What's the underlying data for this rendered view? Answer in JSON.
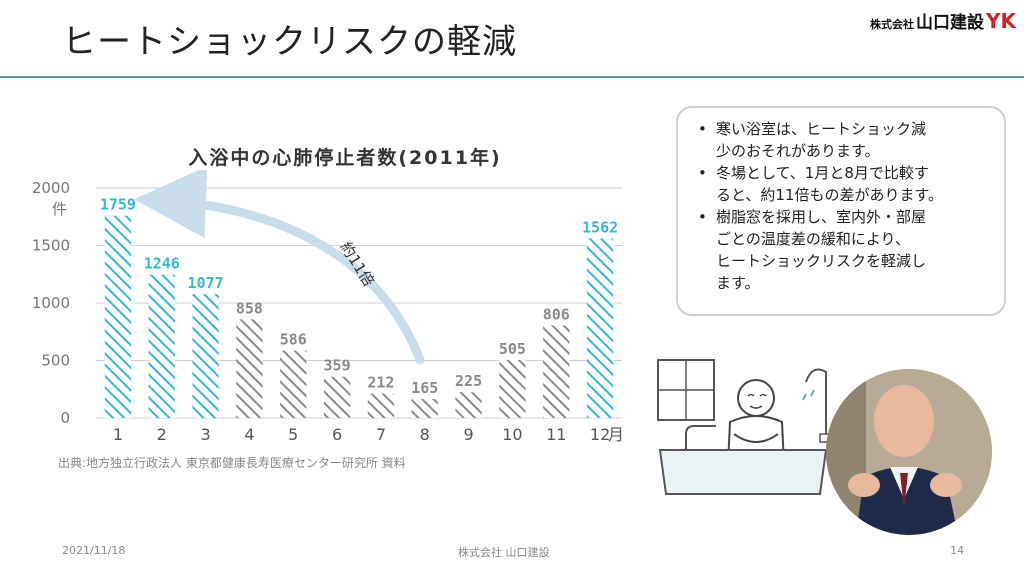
{
  "slide": {
    "title": "ヒートショックリスクの軽減",
    "logo_small": "株式会社",
    "logo_company": "山口建設",
    "logo_mark": "YK"
  },
  "chart_data": {
    "type": "bar",
    "title": "入浴中の心肺停止者数(2011年)",
    "categories": [
      "1",
      "2",
      "3",
      "4",
      "5",
      "6",
      "7",
      "8",
      "9",
      "10",
      "11",
      "12"
    ],
    "values": [
      1759,
      1246,
      1077,
      858,
      586,
      359,
      212,
      165,
      225,
      505,
      806,
      1562
    ],
    "highlighted": [
      true,
      true,
      true,
      false,
      false,
      false,
      false,
      false,
      false,
      false,
      false,
      true
    ],
    "ylim": [
      0,
      2000
    ],
    "yticks": [
      "0",
      "500",
      "1000",
      "1500",
      "2000"
    ],
    "y_unit": "件",
    "x_unit": "月",
    "annotation": "約11倍",
    "colors": {
      "highlight": "#35b8d4",
      "normal": "#8a8a8a",
      "arrow": "#c8dcea",
      "grid": "#cfcfcf"
    },
    "grid": true
  },
  "source": "出典:地方独立行政法人 東京都健康長寿医療センター研究所 資料",
  "notes": [
    "寒い浴室は、ヒートショック減少のおそれがあります。",
    "冬場として、1月と8月で比較すると、約11倍もの差があります。",
    "樹脂窓を採用し、室内外・部屋ごとの温度差の緩和により、ヒートショックリスクを軽減します。"
  ],
  "note_lines": [
    [
      "寒い浴室は、ヒートショック減",
      "少のおそれがあります。"
    ],
    [
      "冬場として、1月と8月で比較す",
      "ると、約11倍もの差があります。"
    ],
    [
      "樹脂窓を採用し、室内外・部屋",
      "ごとの温度差の緩和により、",
      "ヒートショックリスクを軽減し",
      "ます。"
    ]
  ],
  "bullet": "•",
  "footer": {
    "date": "2021/11/18",
    "company": "株式会社 山口建設",
    "page": "14"
  }
}
